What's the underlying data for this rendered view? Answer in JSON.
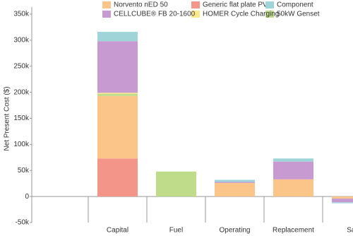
{
  "chart_data": {
    "type": "bar",
    "stacked": true,
    "y_label": "Net Present Cost ($)",
    "categories": [
      "Capital",
      "Fuel",
      "Operating",
      "Replacement",
      "Sal"
    ],
    "series": [
      {
        "name": "Generic flat plate PV",
        "color": "#f4958a",
        "values": [
          73000,
          0,
          0,
          0,
          0
        ]
      },
      {
        "name": "Norvento nED 50",
        "color": "#fbc58a",
        "values": [
          120000,
          0,
          26000,
          33000,
          -4000
        ]
      },
      {
        "name": "50kW Genset",
        "color": "#bfdc8a",
        "values": [
          4000,
          48000,
          0,
          0,
          0
        ]
      },
      {
        "name": "HOMER Cycle Charging",
        "color": "#fbe98c",
        "values": [
          2000,
          0,
          0,
          0,
          0
        ]
      },
      {
        "name": "CELLCUBE® FB 20-1600",
        "color": "#c79bd2",
        "values": [
          99000,
          0,
          2000,
          34000,
          -7000
        ]
      },
      {
        "name": "Component",
        "color": "#9fd4d8",
        "values": [
          18000,
          0,
          4000,
          6000,
          -2000
        ]
      }
    ],
    "ylim": [
      -50000,
      350000
    ],
    "yticks": [
      {
        "value": -50000,
        "label": "-50k"
      },
      {
        "value": 0,
        "label": "0"
      },
      {
        "value": 50000,
        "label": "50k"
      },
      {
        "value": 100000,
        "label": "100k"
      },
      {
        "value": 150000,
        "label": "150k"
      },
      {
        "value": 200000,
        "label": "200k"
      },
      {
        "value": 250000,
        "label": "250k"
      },
      {
        "value": 300000,
        "label": "300k"
      },
      {
        "value": 350000,
        "label": "350k"
      }
    ],
    "grid": false
  }
}
